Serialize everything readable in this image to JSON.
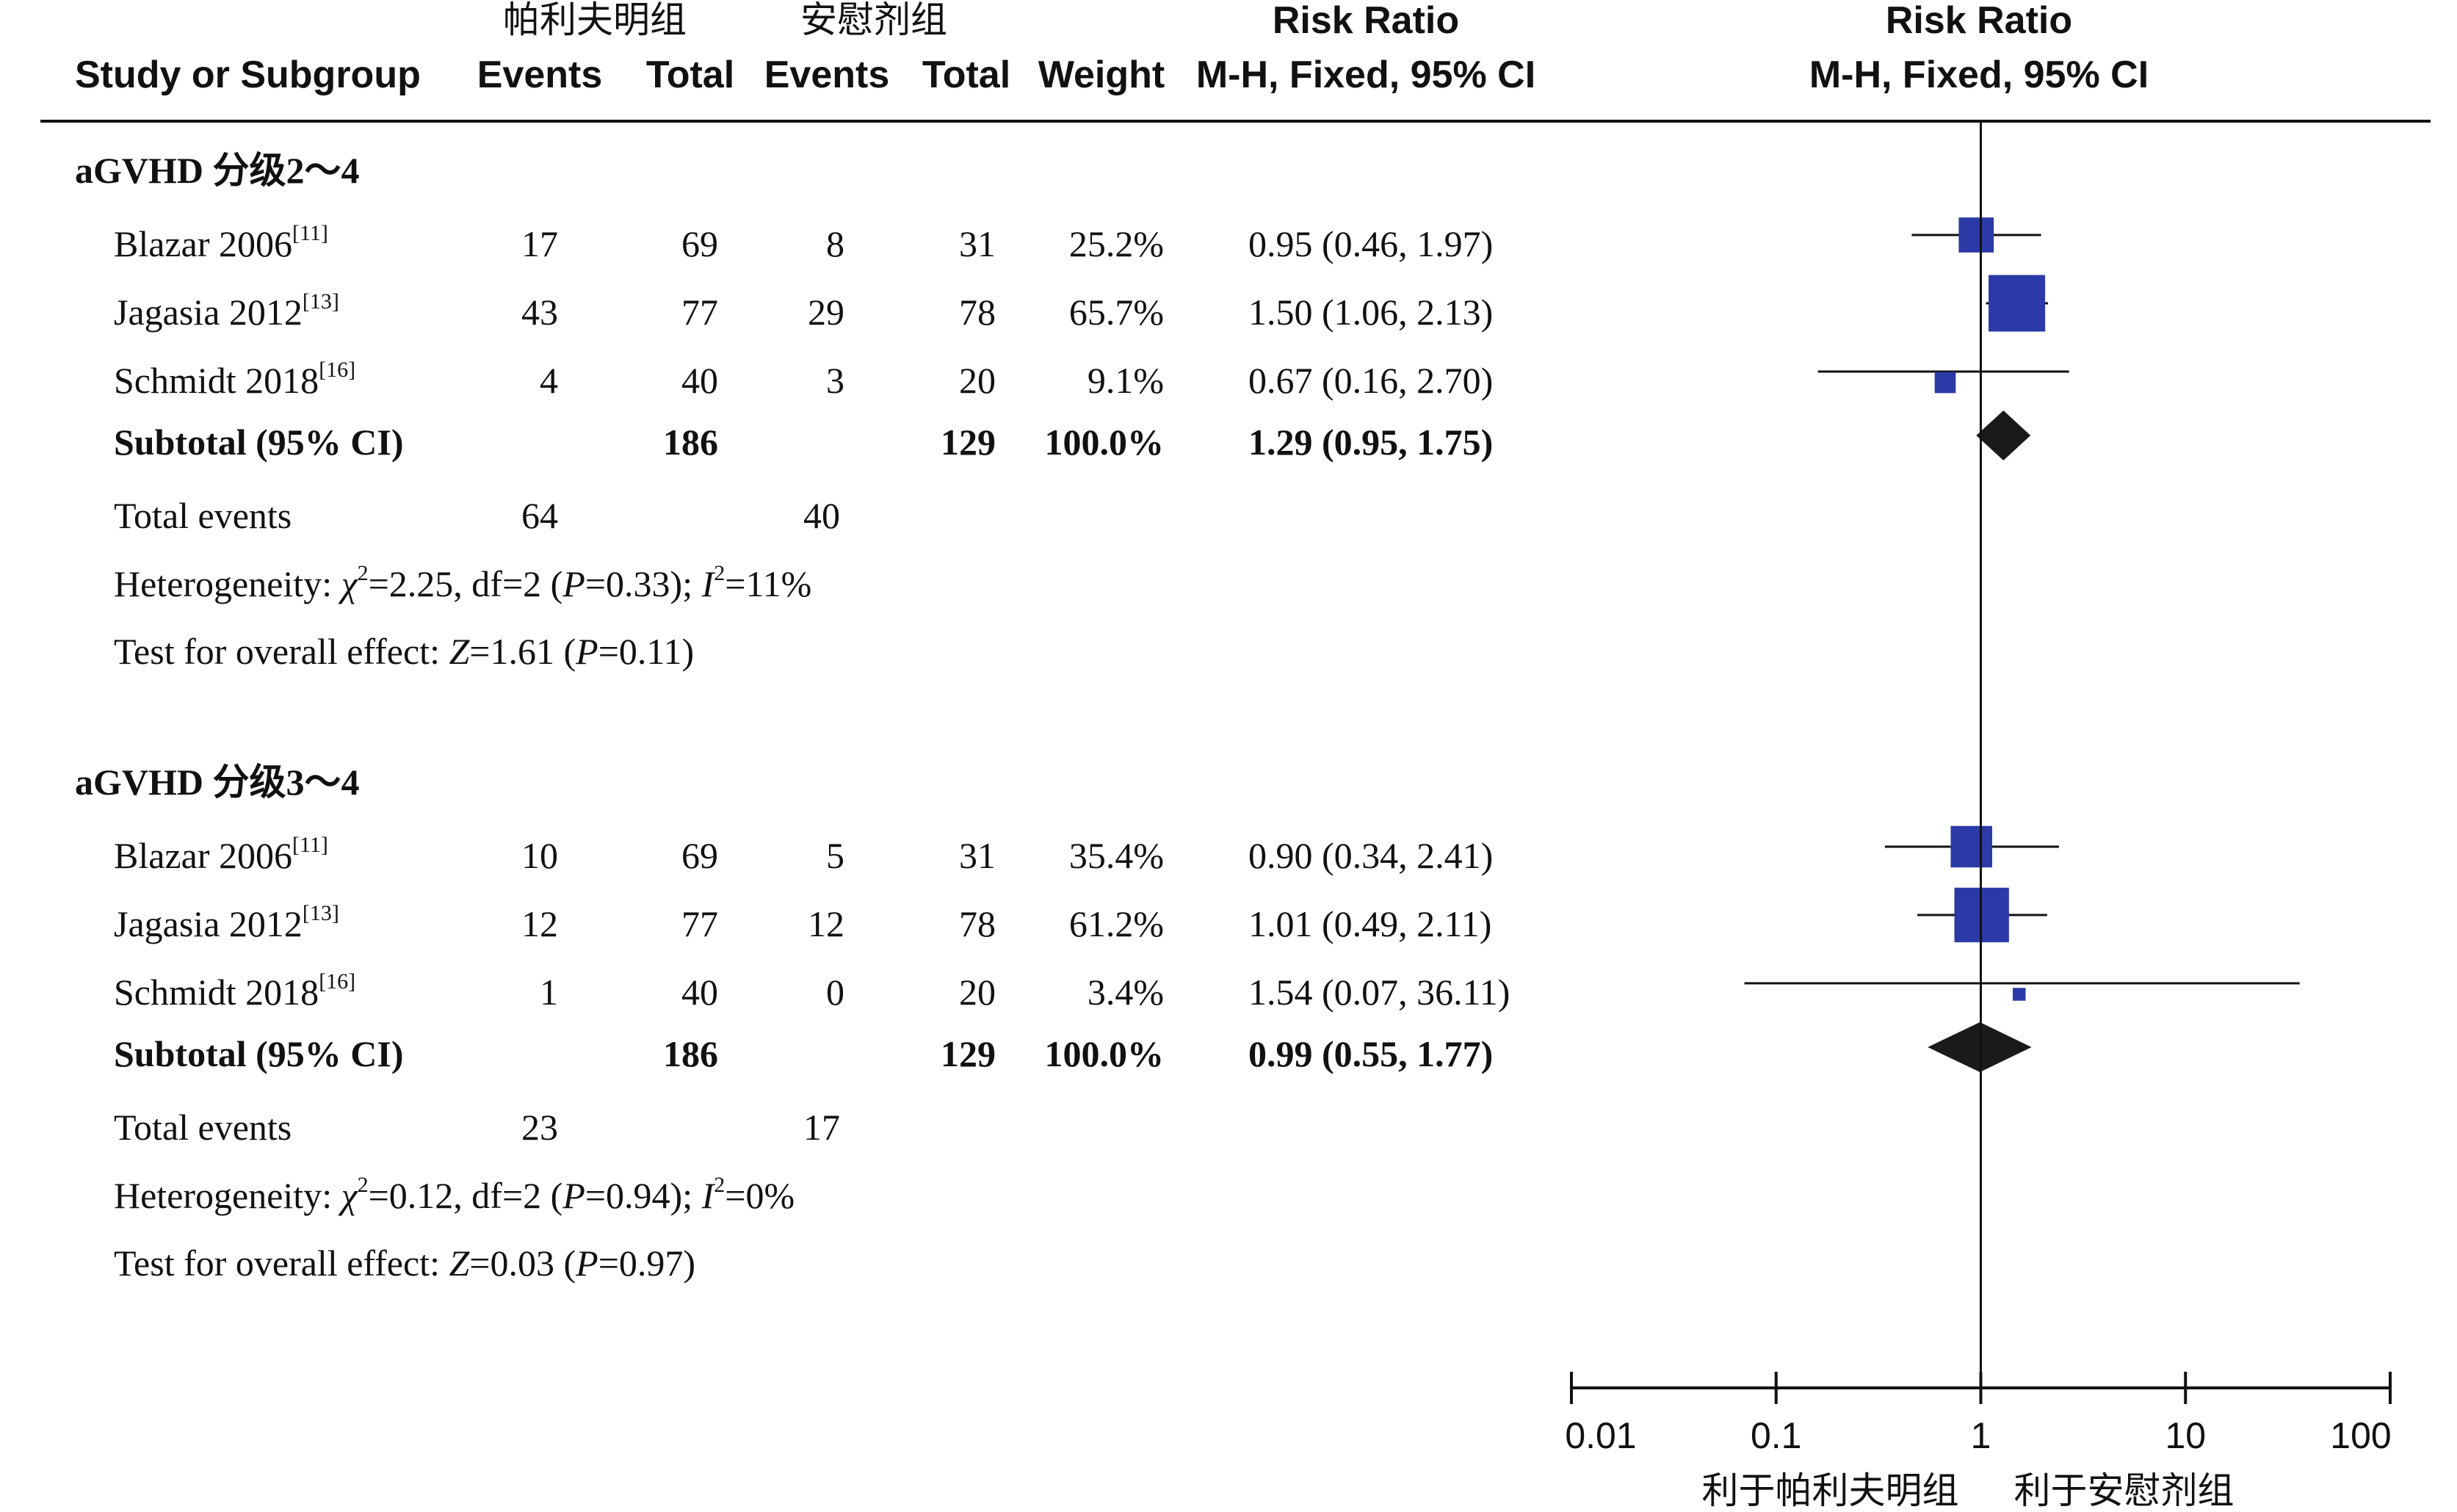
{
  "header": {
    "group1": "帕利夫明组",
    "group2": "安慰剂组",
    "study_col": "Study or Subgroup",
    "events": "Events",
    "total": "Total",
    "weight": "Weight",
    "rr_title": "Risk Ratio",
    "rr_method": "M-H, Fixed, 95% CI"
  },
  "chart_data": {
    "type": "forest",
    "x_scale": "log",
    "xlim": [
      0.01,
      100
    ],
    "ticks": [
      "0.01",
      "0.1",
      "1",
      "10",
      "100"
    ],
    "tick_values": [
      0.01,
      0.1,
      1,
      10,
      100
    ],
    "favours_left": "利于帕利夫明组",
    "favours_right": "利于安慰剂组",
    "colors": {
      "study_box": "#2b3aa6",
      "diamond": "#1a1a1a",
      "line": "#111111"
    },
    "subgroups": [
      {
        "title": "aGVHD 分级2～4",
        "studies": [
          {
            "name": "Blazar 2006",
            "ref": "[11]",
            "e1": "17",
            "t1": "69",
            "e2": "8",
            "t2": "31",
            "weight": "25.2%",
            "ci_text": "0.95 (0.46, 1.97)",
            "rr": 0.95,
            "lo": 0.46,
            "hi": 1.97,
            "w": 25.2
          },
          {
            "name": "Jagasia 2012",
            "ref": "[13]",
            "e1": "43",
            "t1": "77",
            "e2": "29",
            "t2": "78",
            "weight": "65.7%",
            "ci_text": "1.50 (1.06, 2.13)",
            "rr": 1.5,
            "lo": 1.06,
            "hi": 2.13,
            "w": 65.7
          },
          {
            "name": "Schmidt 2018",
            "ref": "[16]",
            "e1": "4",
            "t1": "40",
            "e2": "3",
            "t2": "20",
            "weight": "9.1%",
            "ci_text": "0.67 (0.16, 2.70)",
            "rr": 0.67,
            "lo": 0.16,
            "hi": 2.7,
            "w": 9.1
          }
        ],
        "subtotal": {
          "label": "Subtotal (95% CI)",
          "t1": "186",
          "t2": "129",
          "weight": "100.0%",
          "ci_text": "1.29 (0.95, 1.75)",
          "rr": 1.29,
          "lo": 0.95,
          "hi": 1.75
        },
        "total_events": {
          "label": "Total events",
          "e1": "64",
          "e2": "40"
        },
        "heterogeneity": {
          "prefix": "Heterogeneity: ",
          "chi_sym": "χ",
          "chi_val": "=2.25, df=2 (",
          "p_sym": "P",
          "p_val": "=0.33); ",
          "i_sym": "I",
          "i_val": "=11%"
        },
        "overall": {
          "prefix": "Test for overall effect: ",
          "z_sym": "Z",
          "z_val": "=1.61 (",
          "p_sym": "P",
          "p_val": "=0.11)"
        }
      },
      {
        "title": "aGVHD 分级3～4",
        "studies": [
          {
            "name": "Blazar 2006",
            "ref": "[11]",
            "e1": "10",
            "t1": "69",
            "e2": "5",
            "t2": "31",
            "weight": "35.4%",
            "ci_text": "0.90 (0.34, 2.41)",
            "rr": 0.9,
            "lo": 0.34,
            "hi": 2.41,
            "w": 35.4
          },
          {
            "name": "Jagasia 2012",
            "ref": "[13]",
            "e1": "12",
            "t1": "77",
            "e2": "12",
            "t2": "78",
            "weight": "61.2%",
            "ci_text": "1.01 (0.49, 2.11)",
            "rr": 1.01,
            "lo": 0.49,
            "hi": 2.11,
            "w": 61.2
          },
          {
            "name": "Schmidt 2018",
            "ref": "[16]",
            "e1": "1",
            "t1": "40",
            "e2": "0",
            "t2": "20",
            "weight": "3.4%",
            "ci_text": "1.54 (0.07, 36.11)",
            "rr": 1.54,
            "lo": 0.07,
            "hi": 36.11,
            "w": 3.4
          }
        ],
        "subtotal": {
          "label": "Subtotal (95% CI)",
          "t1": "186",
          "t2": "129",
          "weight": "100.0%",
          "ci_text": "0.99 (0.55, 1.77)",
          "rr": 0.99,
          "lo": 0.55,
          "hi": 1.77
        },
        "total_events": {
          "label": "Total events",
          "e1": "23",
          "e2": "17"
        },
        "heterogeneity": {
          "prefix": "Heterogeneity: ",
          "chi_sym": "χ",
          "chi_val": "=0.12, df=2 (",
          "p_sym": "P",
          "p_val": "=0.94); ",
          "i_sym": "I",
          "i_val": "=0%"
        },
        "overall": {
          "prefix": "Test for overall effect: ",
          "z_sym": "Z",
          "z_val": "=0.03 (",
          "p_sym": "P",
          "p_val": "=0.97)"
        }
      }
    ]
  }
}
